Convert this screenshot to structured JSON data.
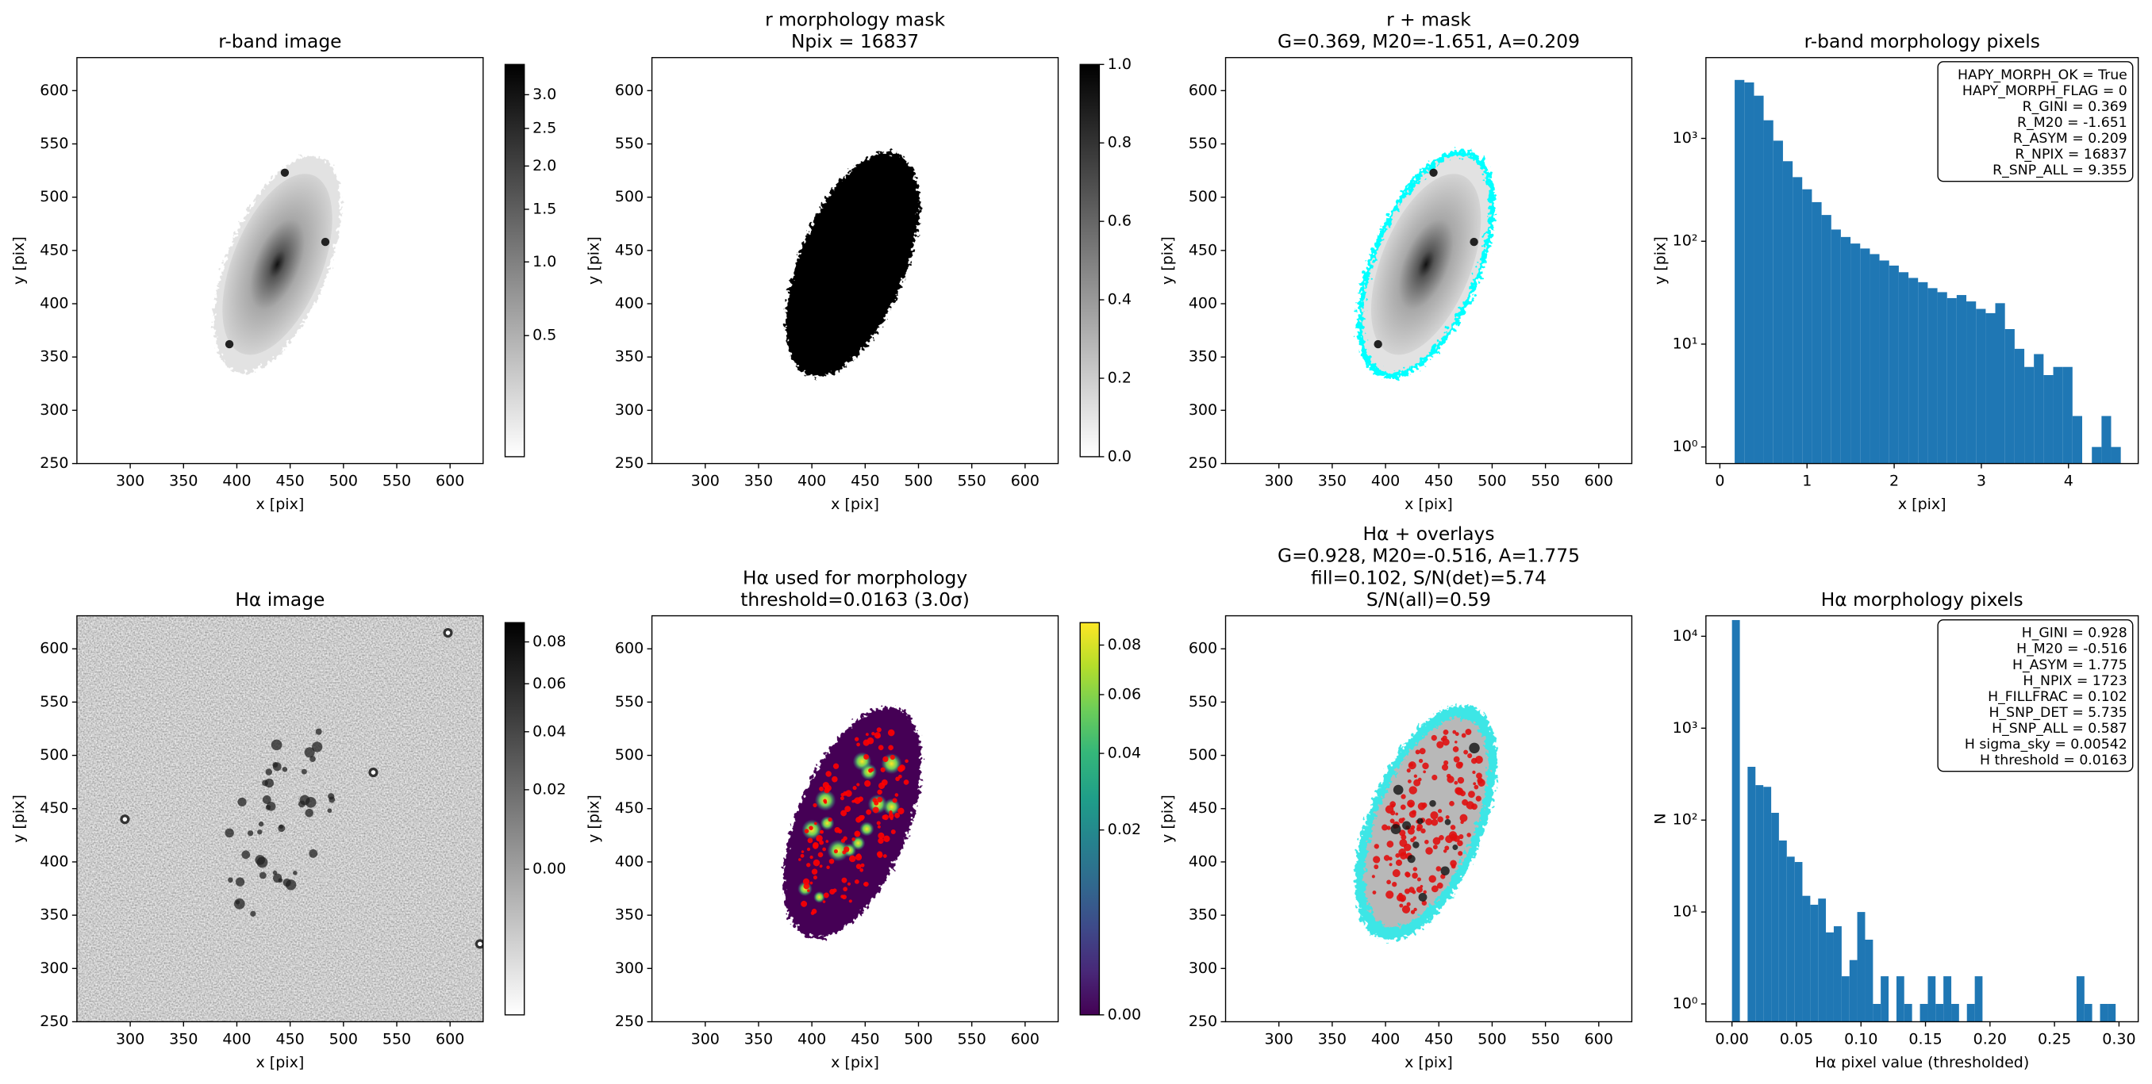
{
  "chart_data": [
    {
      "type": "image",
      "title": [
        "r-band image"
      ],
      "xlabel": "x [pix]",
      "ylabel": "y [pix]",
      "xlim": [
        250,
        631
      ],
      "ylim": [
        250,
        631
      ],
      "xticks": [
        300,
        350,
        400,
        450,
        500,
        550,
        600
      ],
      "yticks": [
        250,
        300,
        350,
        400,
        450,
        500,
        550,
        600
      ],
      "cmap": "gray_r",
      "colorbar": {
        "lim": [
          0.185,
          3.49
        ],
        "stretch": "sqrt",
        "ticks": [
          0.5,
          {
            "value": 1,
            "label": "1.0"
          },
          1.5,
          {
            "value": 2,
            "label": "2.0"
          },
          2.5,
          {
            "value": 3,
            "label": "3.0"
          }
        ]
      }
    },
    {
      "type": "image",
      "title": [
        "r morphology mask",
        "Npix = 16837"
      ],
      "xlabel": "x [pix]",
      "ylabel": "y [pix]",
      "xlim": [
        250,
        631
      ],
      "ylim": [
        250,
        631
      ],
      "xticks": [
        300,
        350,
        400,
        450,
        500,
        550,
        600
      ],
      "yticks": [
        250,
        300,
        350,
        400,
        450,
        500,
        550,
        600
      ],
      "cmap": "gray_r",
      "colorbar": {
        "lim": [
          0,
          1
        ],
        "stretch": "linear",
        "ticks": [
          {
            "value": 0,
            "label": "0.0"
          },
          0.2,
          0.4,
          0.6,
          0.8,
          {
            "value": 1,
            "label": "1.0"
          }
        ]
      }
    },
    {
      "type": "image",
      "title": [
        "r + mask",
        "G=0.369, M20=-1.651, A=0.209"
      ],
      "xlabel": "x [pix]",
      "ylabel": "y [pix]",
      "xlim": [
        250,
        631
      ],
      "ylim": [
        250,
        631
      ],
      "xticks": [
        300,
        350,
        400,
        450,
        500,
        550,
        600
      ],
      "yticks": [
        250,
        300,
        350,
        400,
        450,
        500,
        550,
        600
      ],
      "cmap": "gray_r"
    },
    {
      "type": "histogram",
      "title": [
        "r-band morphology pixels"
      ],
      "xlabel": "x [pix]",
      "ylabel": "y [pix]",
      "log_y": true,
      "xlim": [
        -0.16,
        4.8
      ],
      "ylim": [
        0.69,
        6100
      ],
      "xticks": [
        0,
        1,
        2,
        3,
        4
      ],
      "yticks": [
        {
          "value": 1,
          "label": "10⁰"
        },
        {
          "value": 10,
          "label": "10¹"
        },
        {
          "value": 100,
          "label": "10²"
        },
        {
          "value": 1000,
          "label": "10³"
        }
      ],
      "color": "#1f77b4",
      "bins": [
        0.17,
        0.281,
        0.392,
        0.502,
        0.613,
        0.724,
        0.835,
        0.945,
        1.056,
        1.167,
        1.278,
        1.388,
        1.499,
        1.61,
        1.721,
        1.831,
        1.942,
        2.053,
        2.164,
        2.274,
        2.385,
        2.496,
        2.607,
        2.717,
        2.828,
        2.939,
        3.05,
        3.16,
        3.271,
        3.382,
        3.493,
        3.603,
        3.714,
        3.825,
        3.936,
        4.046,
        4.157,
        4.268,
        4.379,
        4.489,
        4.6
      ],
      "counts": [
        3700,
        3500,
        2600,
        1500,
        950,
        600,
        420,
        320,
        240,
        180,
        130,
        110,
        95,
        85,
        75,
        65,
        58,
        50,
        44,
        40,
        35,
        32,
        28,
        30,
        26,
        22,
        20,
        25,
        14,
        9,
        6,
        8,
        5,
        6,
        6,
        2,
        0,
        1,
        2,
        1
      ],
      "annotation": [
        "HAPY_MORPH_OK = True",
        "HAPY_MORPH_FLAG = 0",
        "R_GINI = 0.369",
        "R_M20 = -1.651",
        "R_ASYM = 0.209",
        "R_NPIX = 16837",
        "R_SNP_ALL = 9.355"
      ]
    },
    {
      "type": "image",
      "title": [
        "Hα image"
      ],
      "xlabel": "x [pix]",
      "ylabel": "y [pix]",
      "xlim": [
        250,
        631
      ],
      "ylim": [
        250,
        631
      ],
      "xticks": [
        300,
        350,
        400,
        450,
        500,
        550,
        600
      ],
      "yticks": [
        250,
        300,
        350,
        400,
        450,
        500,
        550,
        600
      ],
      "cmap": "gray_r",
      "colorbar": {
        "lim": [
          -0.0144,
          0.09
        ],
        "stretch": "sqrt",
        "ticks": [
          {
            "value": 0,
            "label": "0.00"
          },
          {
            "value": 0.02,
            "label": "0.02"
          },
          {
            "value": 0.04,
            "label": "0.04"
          },
          {
            "value": 0.06,
            "label": "0.06"
          },
          {
            "value": 0.08,
            "label": "0.08"
          }
        ]
      }
    },
    {
      "type": "image",
      "title": [
        "Hα used for morphology",
        "threshold=0.0163 (3.0σ)"
      ],
      "xlabel": "x [pix]",
      "ylabel": "y [pix]",
      "xlim": [
        250,
        631
      ],
      "ylim": [
        250,
        631
      ],
      "xticks": [
        300,
        350,
        400,
        450,
        500,
        550,
        600
      ],
      "yticks": [
        250,
        300,
        350,
        400,
        450,
        500,
        550,
        600
      ],
      "cmap": "viridis",
      "colorbar": {
        "lim": [
          0,
          0.09
        ],
        "stretch": "sqrt",
        "ticks": [
          {
            "value": 0,
            "label": "0.00"
          },
          {
            "value": 0.02,
            "label": "0.02"
          },
          {
            "value": 0.04,
            "label": "0.04"
          },
          {
            "value": 0.06,
            "label": "0.06"
          },
          {
            "value": 0.08,
            "label": "0.08"
          }
        ]
      }
    },
    {
      "type": "image",
      "title": [
        "Hα + overlays",
        "G=0.928, M20=-0.516, A=1.775",
        "fill=0.102, S/N(det)=5.74",
        "S/N(all)=0.59"
      ],
      "xlabel": "x [pix]",
      "ylabel": "y [pix]",
      "xlim": [
        250,
        631
      ],
      "ylim": [
        250,
        631
      ],
      "xticks": [
        300,
        350,
        400,
        450,
        500,
        550,
        600
      ],
      "yticks": [
        250,
        300,
        350,
        400,
        450,
        500,
        550,
        600
      ],
      "cmap": "gray_r"
    },
    {
      "type": "histogram",
      "title": [
        "Hα morphology pixels"
      ],
      "xlabel": "Hα pixel value (thresholded)",
      "ylabel": "N",
      "log_y": true,
      "xlim": [
        -0.0202,
        0.3149
      ],
      "ylim": [
        0.64,
        16700
      ],
      "xticks": [
        {
          "value": 0,
          "label": "0.00"
        },
        {
          "value": 0.05,
          "label": "0.05"
        },
        {
          "value": 0.1,
          "label": "0.10"
        },
        {
          "value": 0.15,
          "label": "0.15"
        },
        {
          "value": 0.2,
          "label": "0.20"
        },
        {
          "value": 0.25,
          "label": "0.25"
        },
        {
          "value": 0.3,
          "label": "0.30"
        }
      ],
      "yticks": [
        {
          "value": 1,
          "label": "10⁰"
        },
        {
          "value": 10,
          "label": "10¹"
        },
        {
          "value": 100,
          "label": "10²"
        },
        {
          "value": 1000,
          "label": "10³"
        },
        {
          "value": 10000,
          "label": "10⁴"
        }
      ],
      "color": "#1f77b4",
      "bins": [
        0,
        0.0061,
        0.0121,
        0.0182,
        0.0243,
        0.0304,
        0.0364,
        0.0425,
        0.0486,
        0.0546,
        0.0607,
        0.0668,
        0.0728,
        0.0789,
        0.085,
        0.0911,
        0.0971,
        0.1032,
        0.1093,
        0.1153,
        0.1214,
        0.1275,
        0.1335,
        0.1396,
        0.1457,
        0.1518,
        0.1578,
        0.1639,
        0.17,
        0.176,
        0.1821,
        0.1882,
        0.1942,
        0.2003,
        0.2064,
        0.2125,
        0.2185,
        0.2246,
        0.2307,
        0.2367,
        0.2428,
        0.2489,
        0.2549,
        0.261,
        0.2671,
        0.2732,
        0.2792,
        0.2853,
        0.2914,
        0.2974,
        0.3035
      ],
      "counts": [
        15000,
        0,
        380,
        240,
        230,
        120,
        60,
        40,
        35,
        15,
        12,
        14,
        6,
        7,
        2,
        3,
        10,
        5,
        1,
        2,
        0,
        2,
        1,
        0,
        1,
        2,
        1,
        2,
        1,
        0,
        1,
        2,
        0,
        0,
        0,
        0,
        0,
        0,
        0,
        0,
        0,
        0,
        0,
        0,
        2,
        1,
        0,
        1,
        1,
        0
      ],
      "annotation": [
        "H_GINI = 0.928",
        "H_M20 = -0.516",
        "H_ASYM = 1.775",
        "H_NPIX = 1723",
        "H_FILLFRAC = 0.102",
        "H_SNP_DET = 5.735",
        "H_SNP_ALL = 0.587",
        "H sigma_sky = 0.00542",
        "H threshold = 0.0163"
      ]
    }
  ]
}
